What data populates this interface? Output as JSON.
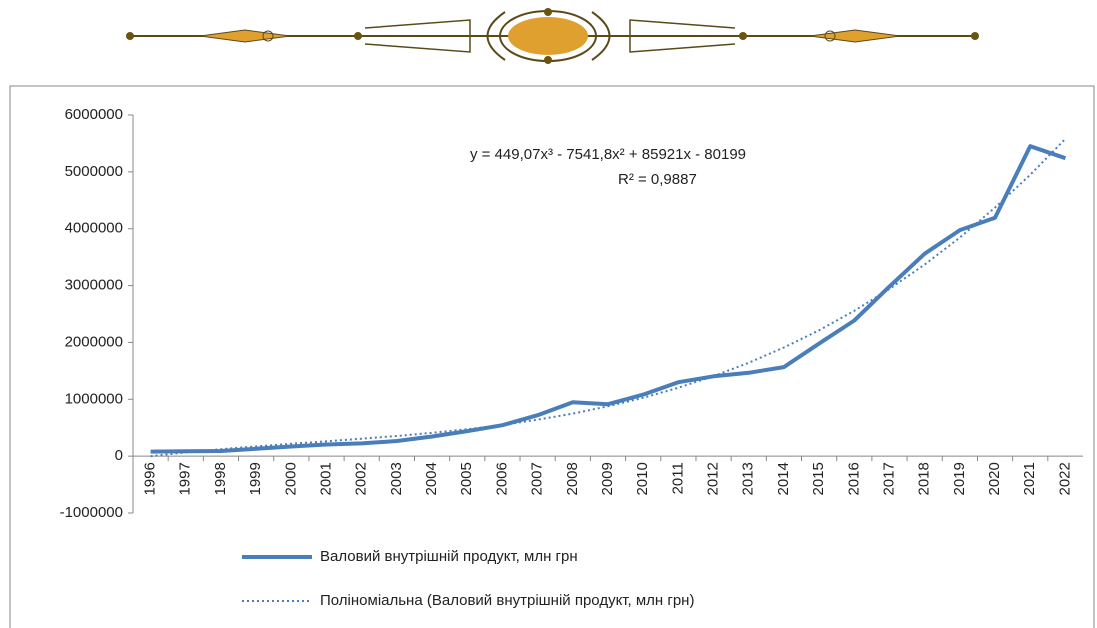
{
  "chart_data": {
    "type": "line",
    "categories": [
      "1996",
      "1997",
      "1998",
      "1999",
      "2000",
      "2001",
      "2002",
      "2003",
      "2004",
      "2005",
      "2006",
      "2007",
      "2008",
      "2009",
      "2010",
      "2011",
      "2012",
      "2013",
      "2014",
      "2015",
      "2016",
      "2017",
      "2018",
      "2019",
      "2020",
      "2021",
      "2022"
    ],
    "series": [
      {
        "name": "Валовий внутрішній продукт, млн грн",
        "color": "#4a7ebb",
        "style": "solid",
        "values": [
          80000,
          85000,
          90000,
          130000,
          170000,
          204000,
          225000,
          267000,
          345000,
          441000,
          544000,
          720000,
          948000,
          913000,
          1083000,
          1300000,
          1405000,
          1465000,
          1566000,
          1979000,
          2385000,
          2983000,
          3561000,
          3975000,
          4194000,
          5451000,
          5240000
        ]
      },
      {
        "name": "Поліноміальна (Валовий внутрішній продукт, млн грн)",
        "color": "#4a7ebb",
        "style": "dotted",
        "values": [
          -1000,
          65000,
          122000,
          172000,
          217000,
          261000,
          306000,
          354000,
          410000,
          474000,
          550000,
          641000,
          749000,
          877000,
          1027000,
          1203000,
          1407000,
          1642000,
          1910000,
          2214000,
          2557000,
          2942000,
          3370000,
          3846000,
          4371000,
          4948000,
          5581000
        ]
      }
    ],
    "annotations": [
      "y = 449,07x³ - 7541,8x² + 85921x - 80199",
      "R² = 0,9887"
    ],
    "ylim": [
      -1000000,
      6000000
    ],
    "yticks": [
      -1000000,
      0,
      1000000,
      2000000,
      3000000,
      4000000,
      5000000,
      6000000
    ],
    "grid": false
  }
}
